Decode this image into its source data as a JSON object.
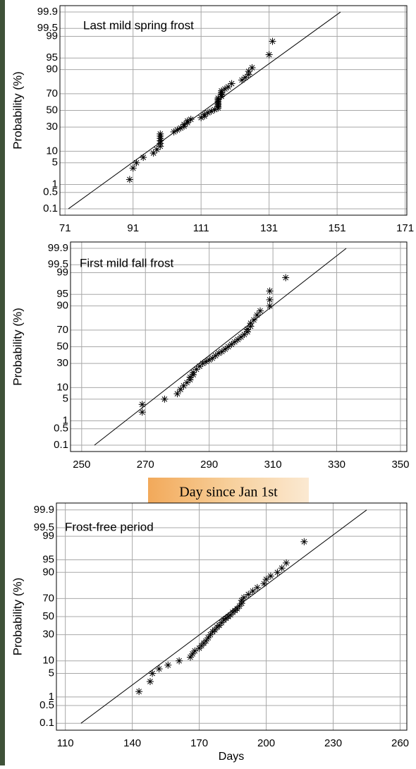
{
  "chart_data": [
    {
      "type": "scatter",
      "title": "Last mild spring frost",
      "ylabel": "Probability (%)",
      "yscale": "probit",
      "grid": true,
      "color": "#000000",
      "xlim": [
        69.5,
        171.5
      ],
      "xticks": [
        71,
        91,
        111,
        131,
        151,
        171
      ],
      "ylim": [
        0.05,
        99.95
      ],
      "yticks": [
        0.1,
        0.5,
        1,
        5,
        10,
        30,
        50,
        70,
        90,
        95,
        99,
        99.5,
        99.9
      ],
      "x": [
        90,
        91,
        92,
        94,
        97,
        98,
        99,
        99,
        99,
        99,
        99,
        99,
        103,
        104,
        105,
        106,
        106,
        107,
        107,
        108,
        111,
        112,
        112,
        113,
        114,
        115,
        116,
        116,
        116,
        116,
        116,
        116,
        116,
        117,
        117,
        117,
        117,
        118,
        119,
        120,
        123,
        124,
        125,
        125,
        126,
        131,
        132
      ],
      "values": [
        1.5,
        3.5,
        5,
        7,
        9,
        11,
        13,
        15,
        17,
        19,
        21,
        23,
        25,
        27,
        29,
        31,
        33,
        35,
        37,
        39,
        41,
        43,
        45,
        47,
        49,
        51,
        53,
        55,
        57,
        59,
        61,
        63,
        65,
        67,
        69,
        71,
        73,
        75,
        77,
        80,
        83,
        85,
        87,
        89,
        91,
        96,
        98.5
      ],
      "fit": {
        "x": [
          72,
          152
        ],
        "values": [
          0.1,
          99.9
        ]
      }
    },
    {
      "type": "scatter",
      "title": "First mild fall frost",
      "ylabel": "Probability (%)",
      "xlabel": "Day since Jan 1st",
      "yscale": "probit",
      "grid": true,
      "color": "#000000",
      "xlim": [
        246.5,
        352
      ],
      "xticks": [
        250,
        270,
        290,
        310,
        330,
        350
      ],
      "ylim": [
        0.05,
        99.95
      ],
      "yticks": [
        0.1,
        0.5,
        1,
        5,
        10,
        30,
        50,
        70,
        90,
        95,
        99,
        99.5,
        99.9
      ],
      "x": [
        269,
        269,
        276,
        280,
        281,
        282,
        283,
        284,
        284,
        285,
        285,
        286,
        287,
        288,
        289,
        290,
        291,
        292,
        293,
        294,
        295,
        296,
        297,
        298,
        299,
        300,
        301,
        302,
        302,
        303,
        303,
        304,
        305,
        306,
        309,
        309,
        309,
        314
      ],
      "values": [
        2,
        3.5,
        5,
        7,
        9,
        11,
        13,
        15,
        17,
        19,
        21,
        24,
        27,
        30,
        32,
        34,
        36,
        39,
        42,
        44,
        47,
        50,
        53,
        56,
        59,
        62,
        65,
        68,
        71,
        74,
        77,
        80,
        84,
        87,
        90,
        93,
        96,
        98.5
      ],
      "fit": {
        "x": [
          254,
          333
        ],
        "values": [
          0.1,
          99.9
        ]
      }
    },
    {
      "type": "scatter",
      "title": "Frost-free period",
      "ylabel": "Probability (%)",
      "xlabel": "Days",
      "yscale": "probit",
      "grid": true,
      "color": "#000000",
      "xlim": [
        106,
        263
      ],
      "xticks": [
        110,
        140,
        170,
        200,
        230,
        260
      ],
      "ylim": [
        0.05,
        99.95
      ],
      "yticks": [
        0.1,
        0.5,
        1,
        5,
        10,
        30,
        50,
        70,
        90,
        95,
        99,
        99.5,
        99.9
      ],
      "x": [
        143,
        148,
        149,
        152,
        156,
        161,
        166,
        167,
        168,
        170,
        171,
        172,
        173,
        174,
        175,
        176,
        177,
        178,
        179,
        180,
        181,
        182,
        183,
        184,
        185,
        186,
        187,
        188,
        189,
        189,
        190,
        192,
        194,
        196,
        199,
        200,
        202,
        205,
        207,
        209,
        217
      ],
      "values": [
        1.5,
        3,
        5,
        6.5,
        8,
        10,
        12,
        14,
        16,
        18,
        20,
        22,
        24,
        27,
        30,
        33,
        35,
        38,
        40,
        43,
        46,
        48,
        50,
        52,
        55,
        57,
        59,
        62,
        65,
        68,
        71,
        74,
        77,
        80,
        83,
        86,
        88,
        90,
        92,
        94,
        98.5
      ],
      "fit": {
        "x": [
          117,
          245
        ],
        "values": [
          0.1,
          99.9
        ]
      }
    }
  ]
}
